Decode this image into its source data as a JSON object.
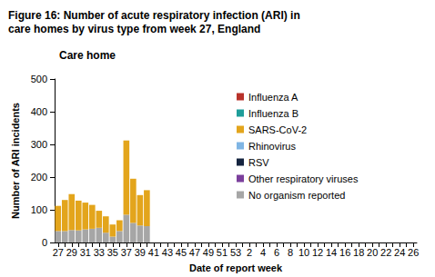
{
  "chart_data": {
    "type": "bar",
    "title": "Figure 16: Number of acute respiratory infection (ARI) in care homes by virus type from week 27, England",
    "subtitle": "Care home",
    "x_label": "Date of report week",
    "y_label": "Number of ARI incidents",
    "categories": [
      "27",
      null,
      "29",
      null,
      "31",
      null,
      "33",
      null,
      "35",
      null,
      "37",
      null,
      "39",
      null,
      "41",
      null,
      "43",
      null,
      "45",
      null,
      "47",
      null,
      "49",
      null,
      "51",
      null,
      "53",
      null,
      "2",
      null,
      "4",
      null,
      "6",
      null,
      "8",
      null,
      "10",
      null,
      "12",
      null,
      "14",
      null,
      "16",
      null,
      "18",
      null,
      "20",
      null,
      "22",
      null,
      "24",
      null,
      "26"
    ],
    "series": [
      {
        "name": "Influenza A",
        "color": "#b8322a",
        "values": [
          0,
          0,
          0,
          0,
          0,
          0,
          0,
          0,
          0,
          0,
          0,
          0,
          0,
          0,
          null,
          null,
          null,
          null,
          null,
          null,
          null,
          null,
          null,
          null,
          null,
          null,
          null,
          null,
          null,
          null,
          null,
          null,
          null,
          null,
          null,
          null,
          null,
          null,
          null,
          null,
          null,
          null,
          null,
          null,
          null,
          null,
          null,
          null,
          null,
          null,
          null,
          null,
          null
        ]
      },
      {
        "name": "Influenza B",
        "color": "#1f9e9a",
        "values": [
          0,
          0,
          0,
          0,
          0,
          0,
          0,
          0,
          0,
          0,
          0,
          0,
          0,
          0,
          null,
          null,
          null,
          null,
          null,
          null,
          null,
          null,
          null,
          null,
          null,
          null,
          null,
          null,
          null,
          null,
          null,
          null,
          null,
          null,
          null,
          null,
          null,
          null,
          null,
          null,
          null,
          null,
          null,
          null,
          null,
          null,
          null,
          null,
          null,
          null,
          null,
          null,
          null
        ]
      },
      {
        "name": "SARS-CoV-2",
        "color": "#e3a51c",
        "values": [
          77,
          95,
          110,
          91,
          82,
          73,
          52,
          50,
          37,
          33,
          227,
          135,
          93,
          110,
          null,
          null,
          null,
          null,
          null,
          null,
          null,
          null,
          null,
          null,
          null,
          null,
          null,
          null,
          null,
          null,
          null,
          null,
          null,
          null,
          null,
          null,
          null,
          null,
          null,
          null,
          null,
          null,
          null,
          null,
          null,
          null,
          null,
          null,
          null,
          null,
          null,
          null,
          null
        ]
      },
      {
        "name": "Rhinovirus",
        "color": "#7fb5e4",
        "values": [
          0,
          0,
          0,
          0,
          0,
          0,
          0,
          0,
          0,
          0,
          0,
          0,
          0,
          0,
          null,
          null,
          null,
          null,
          null,
          null,
          null,
          null,
          null,
          null,
          null,
          null,
          null,
          null,
          null,
          null,
          null,
          null,
          null,
          null,
          null,
          null,
          null,
          null,
          null,
          null,
          null,
          null,
          null,
          null,
          null,
          null,
          null,
          null,
          null,
          null,
          null,
          null,
          null
        ]
      },
      {
        "name": "RSV",
        "color": "#15243f",
        "values": [
          0,
          0,
          0,
          0,
          0,
          0,
          0,
          0,
          0,
          0,
          0,
          0,
          0,
          0,
          null,
          null,
          null,
          null,
          null,
          null,
          null,
          null,
          null,
          null,
          null,
          null,
          null,
          null,
          null,
          null,
          null,
          null,
          null,
          null,
          null,
          null,
          null,
          null,
          null,
          null,
          null,
          null,
          null,
          null,
          null,
          null,
          null,
          null,
          null,
          null,
          null,
          null,
          null
        ]
      },
      {
        "name": "Other respiratory viruses",
        "color": "#7b3f9c",
        "values": [
          0,
          0,
          0,
          0,
          0,
          0,
          0,
          0,
          0,
          0,
          0,
          0,
          0,
          0,
          null,
          null,
          null,
          null,
          null,
          null,
          null,
          null,
          null,
          null,
          null,
          null,
          null,
          null,
          null,
          null,
          null,
          null,
          null,
          null,
          null,
          null,
          null,
          null,
          null,
          null,
          null,
          null,
          null,
          null,
          null,
          null,
          null,
          null,
          null,
          null,
          null,
          null,
          null
        ]
      },
      {
        "name": "No organism reported",
        "color": "#a6a6a6",
        "values": [
          35,
          35,
          38,
          37,
          40,
          42,
          45,
          30,
          18,
          35,
          85,
          60,
          52,
          50,
          null,
          null,
          null,
          null,
          null,
          null,
          null,
          null,
          null,
          null,
          null,
          null,
          null,
          null,
          null,
          null,
          null,
          null,
          null,
          null,
          null,
          null,
          null,
          null,
          null,
          null,
          null,
          null,
          null,
          null,
          null,
          null,
          null,
          null,
          null,
          null,
          null,
          null,
          null
        ]
      }
    ],
    "stacked": true,
    "ylim": [
      0,
      500
    ],
    "yticks": [
      0,
      100,
      200,
      300,
      400,
      500
    ],
    "grid": false,
    "legend": "upper right"
  }
}
